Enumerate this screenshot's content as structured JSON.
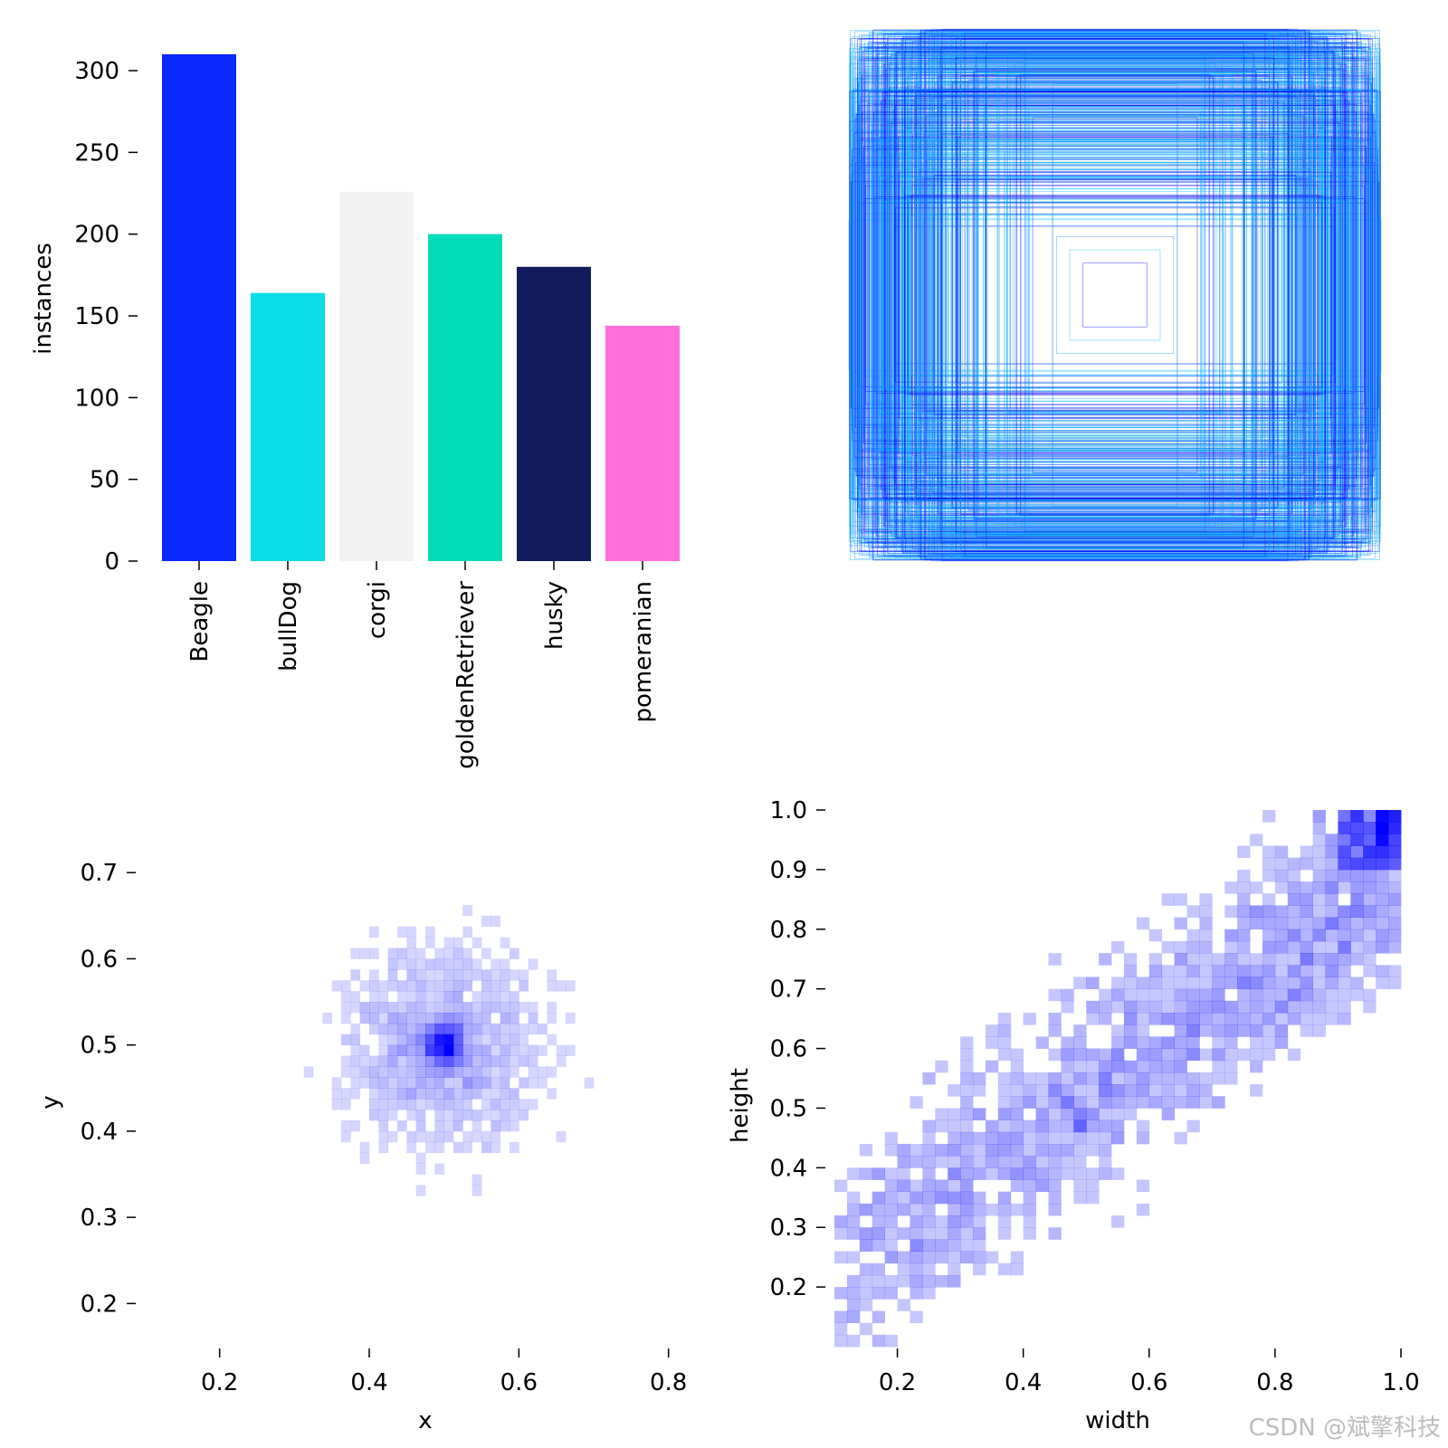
{
  "watermark": "CSDN @斌擎科技",
  "chart_data": [
    {
      "type": "bar",
      "ylabel": "instances",
      "xlabel": "",
      "ylim": [
        0,
        310
      ],
      "yticks": [
        0,
        50,
        100,
        150,
        200,
        250,
        300
      ],
      "categories": [
        "Beagle",
        "bullDog",
        "corgi",
        "goldenRetriever",
        "husky",
        "pomeranian"
      ],
      "values": [
        310,
        164,
        226,
        200,
        180,
        144
      ],
      "colors": [
        "#0A28FF",
        "#0ADDE8",
        "#F2F2F2",
        "#02DDB8",
        "#121C5C",
        "#FF6FDB"
      ],
      "grid": false
    },
    {
      "type": "box-overlay",
      "description_colors": [
        "#0000FF",
        "#00BFFF",
        "#1E90FF"
      ],
      "grid": false
    },
    {
      "type": "heatmap",
      "xlabel": "x",
      "ylabel": "y",
      "xlim": [
        0.1,
        0.85
      ],
      "ylim": [
        0.15,
        0.78
      ],
      "xticks": [
        0.2,
        0.4,
        0.6,
        0.8
      ],
      "yticks": [
        0.2,
        0.3,
        0.4,
        0.5,
        0.6,
        0.7
      ],
      "peak": [
        0.5,
        0.5
      ],
      "color": "#0000FF",
      "grid": false
    },
    {
      "type": "heatmap",
      "xlabel": "width",
      "ylabel": "height",
      "xlim": [
        0.1,
        1.0
      ],
      "ylim": [
        0.1,
        1.0
      ],
      "xticks": [
        0.2,
        0.4,
        0.6,
        0.8,
        1.0
      ],
      "yticks": [
        0.2,
        0.3,
        0.4,
        0.5,
        0.6,
        0.7,
        0.8,
        0.9,
        1.0
      ],
      "peak": [
        1.0,
        1.0
      ],
      "color": "#0000FF",
      "grid": false
    }
  ]
}
